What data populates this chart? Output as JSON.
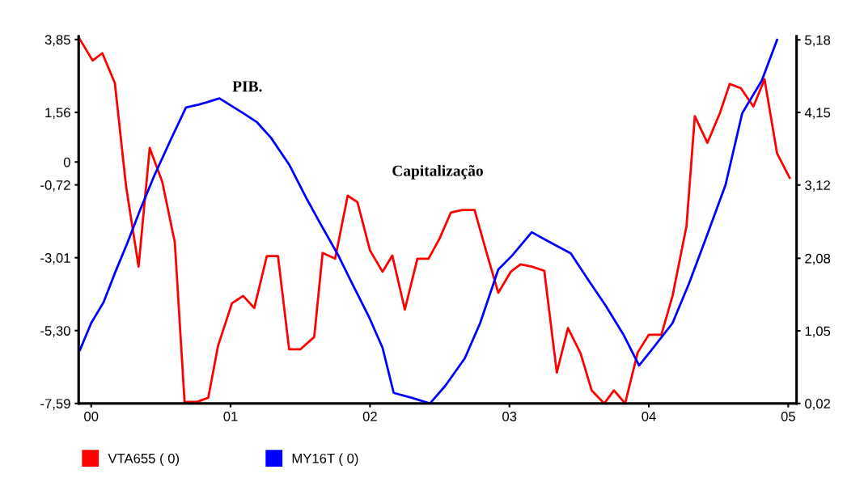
{
  "chart_data": {
    "type": "line",
    "x": [
      -0.08,
      0.01,
      0.08,
      0.17,
      0.25,
      0.34,
      0.42,
      0.51,
      0.6,
      0.67,
      0.76,
      0.84,
      0.91,
      1.01,
      1.09,
      1.17,
      1.26,
      1.34,
      1.42,
      1.5,
      1.6,
      1.66,
      1.75,
      1.84,
      1.91,
      2.0,
      2.09,
      2.16,
      2.25,
      2.34,
      2.42,
      2.5,
      2.58,
      2.66,
      2.75,
      2.84,
      2.92,
      3.01,
      3.08,
      3.16,
      3.25,
      3.34,
      3.42,
      3.51,
      3.59,
      3.68,
      3.75,
      3.83,
      3.92,
      4.0,
      4.09,
      4.17,
      4.27,
      4.33,
      4.42,
      4.51,
      4.58,
      4.66,
      4.75,
      4.83,
      4.92,
      5.01
    ],
    "series": [
      {
        "name": "VTA655 ( 0)",
        "color": "#ff0000",
        "values": [
          3.85,
          3.19,
          3.42,
          2.48,
          -0.75,
          -3.29,
          0.44,
          -0.62,
          -2.53,
          -7.54,
          -7.54,
          -7.41,
          -5.78,
          -4.44,
          -4.21,
          -4.59,
          -2.96,
          -2.96,
          -5.89,
          -5.89,
          -5.5,
          -2.86,
          -3.04,
          -1.06,
          -1.26,
          -2.78,
          -3.45,
          -2.94,
          -4.64,
          -3.04,
          -3.04,
          -2.4,
          -1.59,
          -1.51,
          -1.51,
          -2.91,
          -4.11,
          -3.45,
          -3.22,
          -3.29,
          -3.42,
          -6.62,
          -5.22,
          -6.01,
          -7.18,
          -7.59,
          -7.18,
          -7.59,
          -5.99,
          -5.43,
          -5.43,
          -4.21,
          -2.02,
          1.44,
          0.6,
          1.54,
          2.45,
          2.32,
          1.74,
          2.6,
          0.27,
          -0.5
        ]
      },
      {
        "name": "MY16T ( 0)",
        "color": "#0000ff",
        "axis": "y2",
        "x": [
          -0.08,
          0,
          0.09,
          0.17,
          0.26,
          0.35,
          0.45,
          0.57,
          0.68,
          0.77,
          0.84,
          0.92,
          1.09,
          1.19,
          1.29,
          1.42,
          1.55,
          1.65,
          1.77,
          1.87,
          1.99,
          2.09,
          2.17,
          2.3,
          2.43,
          2.54,
          2.68,
          2.79,
          2.92,
          3.02,
          3.16,
          3.28,
          3.44,
          3.57,
          3.69,
          3.82,
          3.93,
          4.02,
          4.17,
          4.29,
          4.42,
          4.55,
          4.67,
          4.81,
          4.92
        ],
        "values": [
          0.78,
          1.16,
          1.46,
          1.87,
          2.3,
          2.76,
          3.24,
          3.76,
          4.22,
          4.26,
          4.3,
          4.35,
          4.14,
          4.01,
          3.79,
          3.41,
          2.91,
          2.55,
          2.13,
          1.73,
          1.26,
          0.81,
          0.17,
          0.1,
          0.02,
          0.27,
          0.66,
          1.16,
          1.92,
          2.12,
          2.45,
          2.32,
          2.15,
          1.76,
          1.41,
          0.99,
          0.56,
          0.78,
          1.16,
          1.73,
          2.42,
          3.12,
          4.14,
          4.6,
          5.18
        ]
      }
    ],
    "annotations": [
      "PIB.",
      "Capitalização"
    ],
    "xlim": [
      -0.09,
      5.06
    ],
    "xticks": [
      {
        "value": 0,
        "label": "00"
      },
      {
        "value": 1,
        "label": "01"
      },
      {
        "value": 2,
        "label": "02"
      },
      {
        "value": 3,
        "label": "03"
      },
      {
        "value": 4,
        "label": "04"
      },
      {
        "value": 5,
        "label": "05"
      }
    ],
    "ylim": [
      -7.59,
      3.95
    ],
    "yticks": [
      {
        "value": -7.59,
        "label": "-7,59"
      },
      {
        "value": -5.3,
        "label": "-5,30"
      },
      {
        "value": -3.01,
        "label": "-3,01"
      },
      {
        "value": -0.72,
        "label": "-0,72"
      },
      {
        "value": 0,
        "label": "0"
      },
      {
        "value": 1.56,
        "label": "1,56"
      },
      {
        "value": 3.85,
        "label": "3,85"
      }
    ],
    "y2lim": [
      0.02,
      5.23
    ],
    "y2ticks": [
      {
        "value": 0.02,
        "label": "0,02"
      },
      {
        "value": 1.05,
        "label": "1,05"
      },
      {
        "value": 2.08,
        "label": "2,08"
      },
      {
        "value": 3.12,
        "label": "3,12"
      },
      {
        "value": 4.15,
        "label": "4,15"
      },
      {
        "value": 5.18,
        "label": "5,18"
      }
    ],
    "grid": false,
    "legend": "bottom left",
    "marker": "none",
    "line_style": "solid"
  }
}
